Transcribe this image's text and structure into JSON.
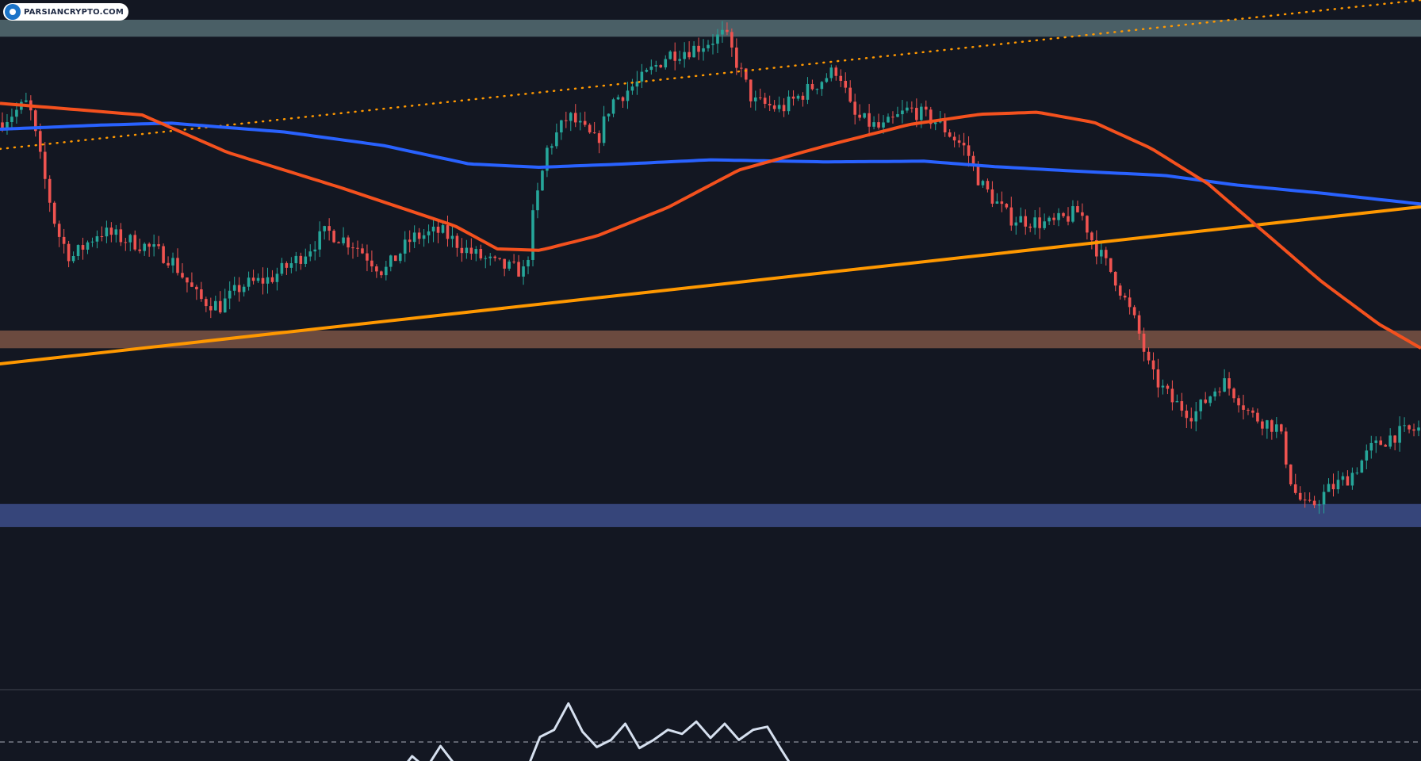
{
  "watermark": {
    "text": "PARSIANCRYPTO.COM"
  },
  "chart_data": {
    "type": "candlestick",
    "title": "",
    "xlabel": "",
    "ylabel": "",
    "grid": false,
    "legend": "none",
    "price_range": [
      0,
      100
    ],
    "colors": {
      "background": "#131722",
      "candle_up": "#26a69a",
      "candle_down": "#ef5350",
      "ma_short": "#f4511e",
      "ma_long": "#2962ff",
      "trendline": "#ff9800",
      "dotted_trendline": "#ff9800",
      "zone_resistance": "#4a5f66",
      "zone_support_brown": "#6b4a3f",
      "zone_support_blue": "#36457a",
      "oscillator_line": "#d6e0ef",
      "divider": "#2a2e39"
    },
    "zones": [
      {
        "name": "resistance",
        "from": 94.6,
        "to": 97.1,
        "color": "#4a5f66"
      },
      {
        "name": "support",
        "from": 48.8,
        "to": 51.4,
        "color": "#6b4a3f"
      },
      {
        "name": "support",
        "from": 22.5,
        "to": 25.9,
        "color": "#36457a"
      }
    ],
    "trendlines": [
      {
        "style": "solid",
        "from": [
          0,
          46.5
        ],
        "to": [
          1,
          69.6
        ],
        "color": "#ff9800"
      },
      {
        "style": "dotted",
        "from": [
          0,
          78.1
        ],
        "to": [
          1,
          100.0
        ],
        "color": "#ff9800"
      }
    ],
    "candle_keypoints": [
      [
        0,
        82
      ],
      [
        0.02,
        85
      ],
      [
        0.03,
        75
      ],
      [
        0.04,
        66
      ],
      [
        0.05,
        62
      ],
      [
        0.07,
        66
      ],
      [
        0.1,
        64
      ],
      [
        0.12,
        62
      ],
      [
        0.14,
        56
      ],
      [
        0.155,
        55
      ],
      [
        0.17,
        58
      ],
      [
        0.19,
        59
      ],
      [
        0.21,
        62
      ],
      [
        0.23,
        66
      ],
      [
        0.25,
        64
      ],
      [
        0.27,
        60
      ],
      [
        0.29,
        65
      ],
      [
        0.31,
        66
      ],
      [
        0.33,
        63
      ],
      [
        0.35,
        61
      ],
      [
        0.37,
        60
      ],
      [
        0.375,
        68
      ],
      [
        0.385,
        78
      ],
      [
        0.4,
        83
      ],
      [
        0.42,
        79
      ],
      [
        0.43,
        85
      ],
      [
        0.45,
        88
      ],
      [
        0.47,
        92
      ],
      [
        0.49,
        93
      ],
      [
        0.51,
        95
      ],
      [
        0.52,
        90
      ],
      [
        0.53,
        85
      ],
      [
        0.55,
        84
      ],
      [
        0.57,
        87
      ],
      [
        0.59,
        90
      ],
      [
        0.6,
        83
      ],
      [
        0.62,
        81
      ],
      [
        0.64,
        84
      ],
      [
        0.66,
        82
      ],
      [
        0.68,
        78
      ],
      [
        0.69,
        73
      ],
      [
        0.71,
        68
      ],
      [
        0.74,
        67
      ],
      [
        0.76,
        69
      ],
      [
        0.77,
        64
      ],
      [
        0.785,
        59
      ],
      [
        0.8,
        52
      ],
      [
        0.81,
        45
      ],
      [
        0.825,
        41
      ],
      [
        0.84,
        39
      ],
      [
        0.86,
        44
      ],
      [
        0.87,
        42
      ],
      [
        0.88,
        39
      ],
      [
        0.9,
        37
      ],
      [
        0.91,
        28
      ],
      [
        0.92,
        25
      ],
      [
        0.935,
        28
      ],
      [
        0.95,
        30
      ],
      [
        0.965,
        34
      ],
      [
        0.98,
        36
      ],
      [
        1.0,
        37
      ]
    ],
    "ma_short_keypoints": [
      [
        0,
        84.8
      ],
      [
        0.1,
        83.1
      ],
      [
        0.16,
        77.6
      ],
      [
        0.24,
        72.4
      ],
      [
        0.3,
        68.2
      ],
      [
        0.32,
        66.8
      ],
      [
        0.35,
        63.4
      ],
      [
        0.38,
        63.2
      ],
      [
        0.42,
        65.3
      ],
      [
        0.47,
        69.5
      ],
      [
        0.52,
        75.0
      ],
      [
        0.58,
        78.5
      ],
      [
        0.64,
        81.7
      ],
      [
        0.69,
        83.2
      ],
      [
        0.73,
        83.5
      ],
      [
        0.77,
        82.0
      ],
      [
        0.81,
        78.2
      ],
      [
        0.85,
        73.0
      ],
      [
        0.89,
        65.8
      ],
      [
        0.93,
        58.6
      ],
      [
        0.97,
        52.4
      ],
      [
        1.0,
        48.8
      ]
    ],
    "ma_long_keypoints": [
      [
        0,
        81.0
      ],
      [
        0.07,
        81.6
      ],
      [
        0.12,
        81.9
      ],
      [
        0.2,
        80.6
      ],
      [
        0.27,
        78.6
      ],
      [
        0.33,
        75.9
      ],
      [
        0.38,
        75.4
      ],
      [
        0.44,
        75.9
      ],
      [
        0.5,
        76.5
      ],
      [
        0.58,
        76.2
      ],
      [
        0.65,
        76.3
      ],
      [
        0.7,
        75.5
      ],
      [
        0.76,
        74.8
      ],
      [
        0.82,
        74.2
      ],
      [
        0.87,
        72.8
      ],
      [
        0.93,
        71.6
      ],
      [
        1.0,
        70.0
      ]
    ],
    "oscillator": {
      "reference_level": 50,
      "range": [
        0,
        100
      ],
      "keypoints": [
        [
          0.2,
          10
        ],
        [
          0.21,
          18
        ],
        [
          0.22,
          14
        ],
        [
          0.23,
          20
        ],
        [
          0.24,
          12
        ],
        [
          0.28,
          18
        ],
        [
          0.29,
          36
        ],
        [
          0.3,
          24
        ],
        [
          0.31,
          46
        ],
        [
          0.32,
          28
        ],
        [
          0.37,
          20
        ],
        [
          0.38,
          55
        ],
        [
          0.39,
          62
        ],
        [
          0.4,
          88
        ],
        [
          0.41,
          60
        ],
        [
          0.42,
          45
        ],
        [
          0.43,
          52
        ],
        [
          0.44,
          68
        ],
        [
          0.45,
          44
        ],
        [
          0.46,
          52
        ],
        [
          0.47,
          62
        ],
        [
          0.48,
          58
        ],
        [
          0.49,
          70
        ],
        [
          0.5,
          54
        ],
        [
          0.51,
          68
        ],
        [
          0.52,
          52
        ],
        [
          0.53,
          62
        ],
        [
          0.54,
          65
        ],
        [
          0.55,
          42
        ],
        [
          0.56,
          20
        ],
        [
          0.57,
          18
        ],
        [
          0.58,
          28
        ],
        [
          0.59,
          22
        ],
        [
          0.6,
          24
        ],
        [
          0.62,
          10
        ]
      ]
    }
  }
}
